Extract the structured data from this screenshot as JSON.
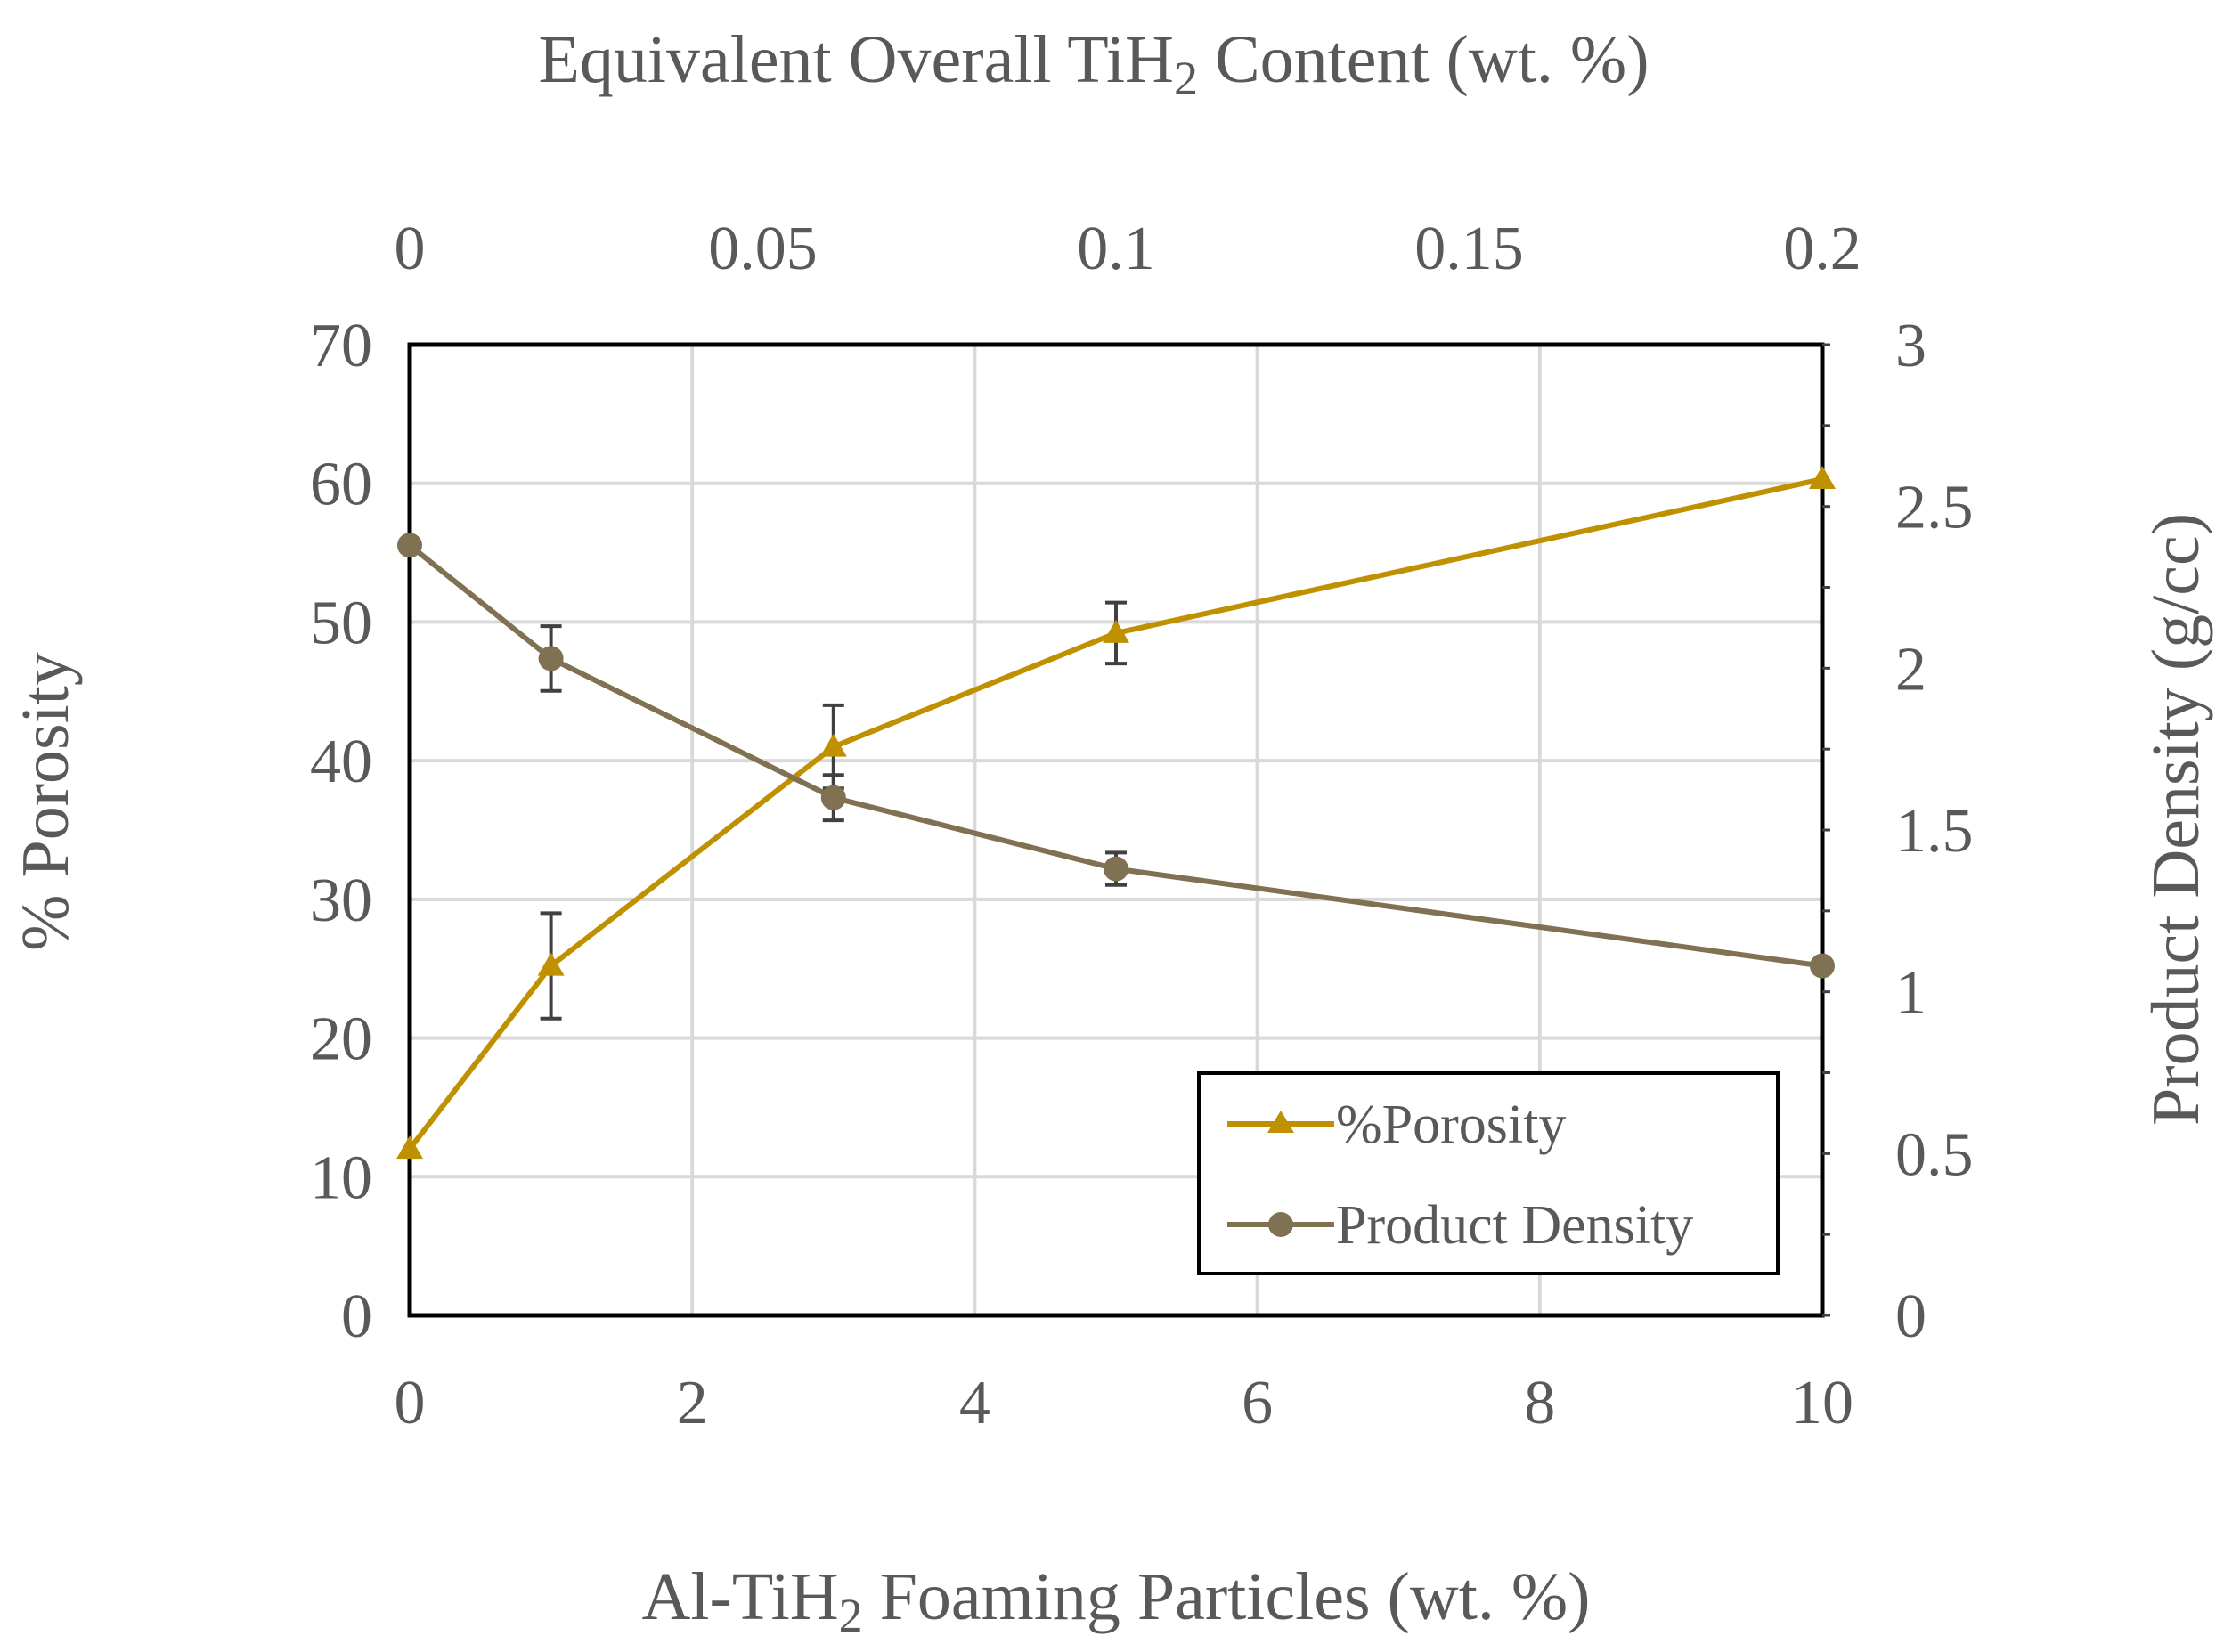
{
  "chart_data": {
    "type": "line",
    "x_bottom": {
      "label_prefix": "Al-TiH",
      "label_sub": "2",
      "label_suffix": " Foaming Particles (wt. %)",
      "range": [
        0,
        10
      ],
      "ticks": [
        "0",
        "2",
        "4",
        "6",
        "8",
        "10"
      ]
    },
    "x_top": {
      "label_prefix": "Equivalent Overall TiH",
      "label_sub": "2",
      "label_suffix": " Content (wt. %)",
      "range": [
        0,
        0.2
      ],
      "ticks": [
        "0",
        "0.05",
        "0.1",
        "0.15",
        "0.2"
      ]
    },
    "y_left": {
      "label": "% Porosity",
      "range": [
        0,
        70
      ],
      "ticks": [
        "0",
        "10",
        "20",
        "30",
        "40",
        "50",
        "60",
        "70"
      ]
    },
    "y_right": {
      "label": "Product Density (g/cc)",
      "range": [
        0,
        3
      ],
      "ticks": [
        "0",
        "0.5",
        "1",
        "1.5",
        "2",
        "2.5",
        "3"
      ]
    },
    "series": [
      {
        "name": "%Porosity",
        "axis": "left",
        "marker": "triangle",
        "color": "#BF9000",
        "x": [
          0,
          1,
          3,
          5,
          10
        ],
        "y": [
          12,
          25.2,
          41,
          49.2,
          60.3
        ],
        "error": [
          0,
          3.8,
          3,
          2.2,
          0
        ]
      },
      {
        "name": "Product Density",
        "axis": "right",
        "marker": "circle",
        "color": "#7F7152",
        "x": [
          0,
          1,
          3,
          5,
          10
        ],
        "y": [
          2.38,
          2.03,
          1.6,
          1.38,
          1.08
        ],
        "error": [
          0,
          0.1,
          0.07,
          0.05,
          0
        ]
      }
    ],
    "grid": true,
    "legend_position": "bottom-right"
  }
}
